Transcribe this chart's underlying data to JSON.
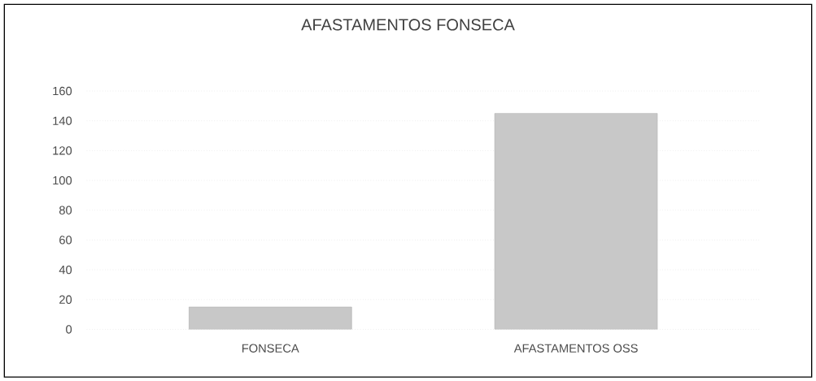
{
  "chart_data": {
    "type": "bar",
    "title": "AFASTAMENTOS FONSECA",
    "categories": [
      "FONSECA",
      "AFASTAMENTOS OSS"
    ],
    "values": [
      15,
      145
    ],
    "color": "#c8c8c8",
    "ylim": [
      0,
      160
    ],
    "yticks": [
      0,
      20,
      40,
      60,
      80,
      100,
      120,
      140,
      160
    ],
    "grid": "y"
  }
}
